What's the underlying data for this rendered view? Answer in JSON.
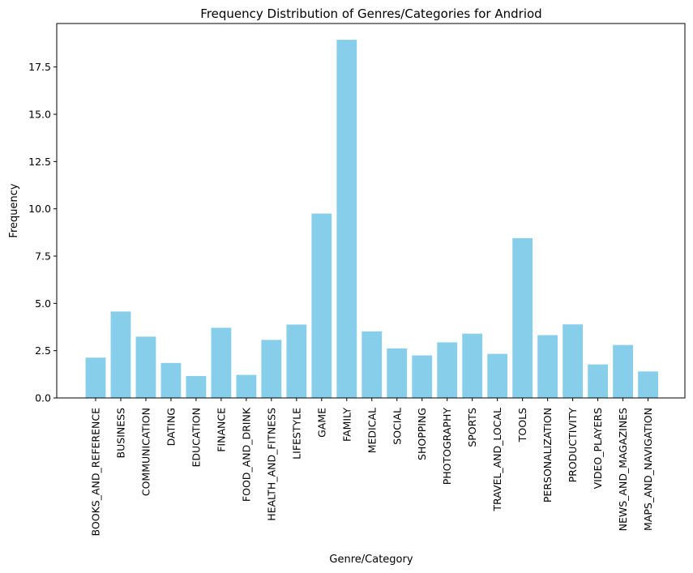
{
  "chart_data": {
    "type": "bar",
    "title": "Frequency Distribution of Genres/Categories for Andriod",
    "xlabel": "Genre/Category",
    "ylabel": "Frequency",
    "ylim": [
      0,
      19.8
    ],
    "yticks": [
      0.0,
      2.5,
      5.0,
      7.5,
      10.0,
      12.5,
      15.0,
      17.5
    ],
    "ytick_labels": [
      "0.0",
      "2.5",
      "5.0",
      "7.5",
      "10.0",
      "12.5",
      "15.0",
      "17.5"
    ],
    "bar_color": "#87ceeb",
    "grid": false,
    "categories": [
      "BOOKS_AND_REFERENCE",
      "BUSINESS",
      "COMMUNICATION",
      "DATING",
      "EDUCATION",
      "FINANCE",
      "FOOD_AND_DRINK",
      "HEALTH_AND_FITNESS",
      "LIFESTYLE",
      "GAME",
      "FAMILY",
      "MEDICAL",
      "SOCIAL",
      "SHOPPING",
      "PHOTOGRAPHY",
      "SPORTS",
      "TRAVEL_AND_LOCAL",
      "TOOLS",
      "PERSONALIZATION",
      "PRODUCTIVITY",
      "VIDEO_PLAYERS",
      "NEWS_AND_MAGAZINES",
      "MAPS_AND_NAVIGATION"
    ],
    "values": [
      2.13,
      4.57,
      3.24,
      1.85,
      1.16,
      3.71,
      1.22,
      3.07,
      3.88,
      9.75,
      18.94,
      3.52,
      2.62,
      2.25,
      2.94,
      3.4,
      2.33,
      8.45,
      3.32,
      3.89,
      1.77,
      2.8,
      1.4
    ]
  }
}
